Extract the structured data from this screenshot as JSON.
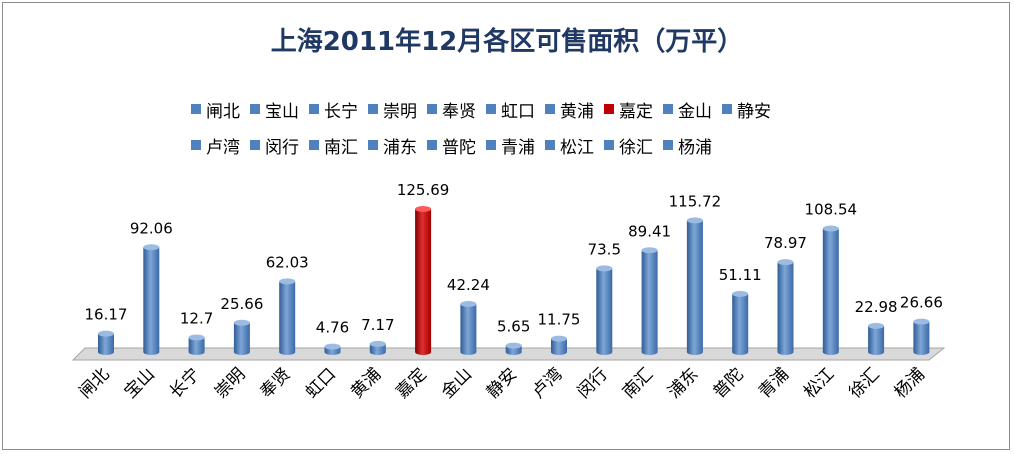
{
  "chart_data": {
    "type": "bar",
    "title": "上海2011年12月各区可售面积（万平）",
    "categories": [
      "闸北",
      "宝山",
      "长宁",
      "崇明",
      "奉贤",
      "虹口",
      "黄浦",
      "嘉定",
      "金山",
      "静安",
      "卢湾",
      "闵行",
      "南汇",
      "浦东",
      "普陀",
      "青浦",
      "松江",
      "徐汇",
      "杨浦"
    ],
    "values": [
      16.17,
      92.06,
      12.7,
      25.66,
      62.03,
      4.76,
      7.17,
      125.69,
      42.24,
      5.65,
      11.75,
      73.5,
      89.41,
      115.72,
      51.11,
      78.97,
      108.54,
      22.98,
      26.66
    ],
    "value_labels": [
      "16.17",
      "92.06",
      "12.7",
      "25.66",
      "62.03",
      "4.76",
      "7.17",
      "125.69",
      "42.24",
      "5.65",
      "11.75",
      "73.5",
      "89.41",
      "115.72",
      "51.11",
      "78.97",
      "108.54",
      "22.98",
      "26.66"
    ],
    "highlight_category": "嘉定",
    "ylim": [
      0,
      125.69
    ],
    "colors": {
      "default": "#4f81bd",
      "highlight": "#c00000",
      "title": "#1f3864"
    },
    "legend_placement": "top"
  }
}
